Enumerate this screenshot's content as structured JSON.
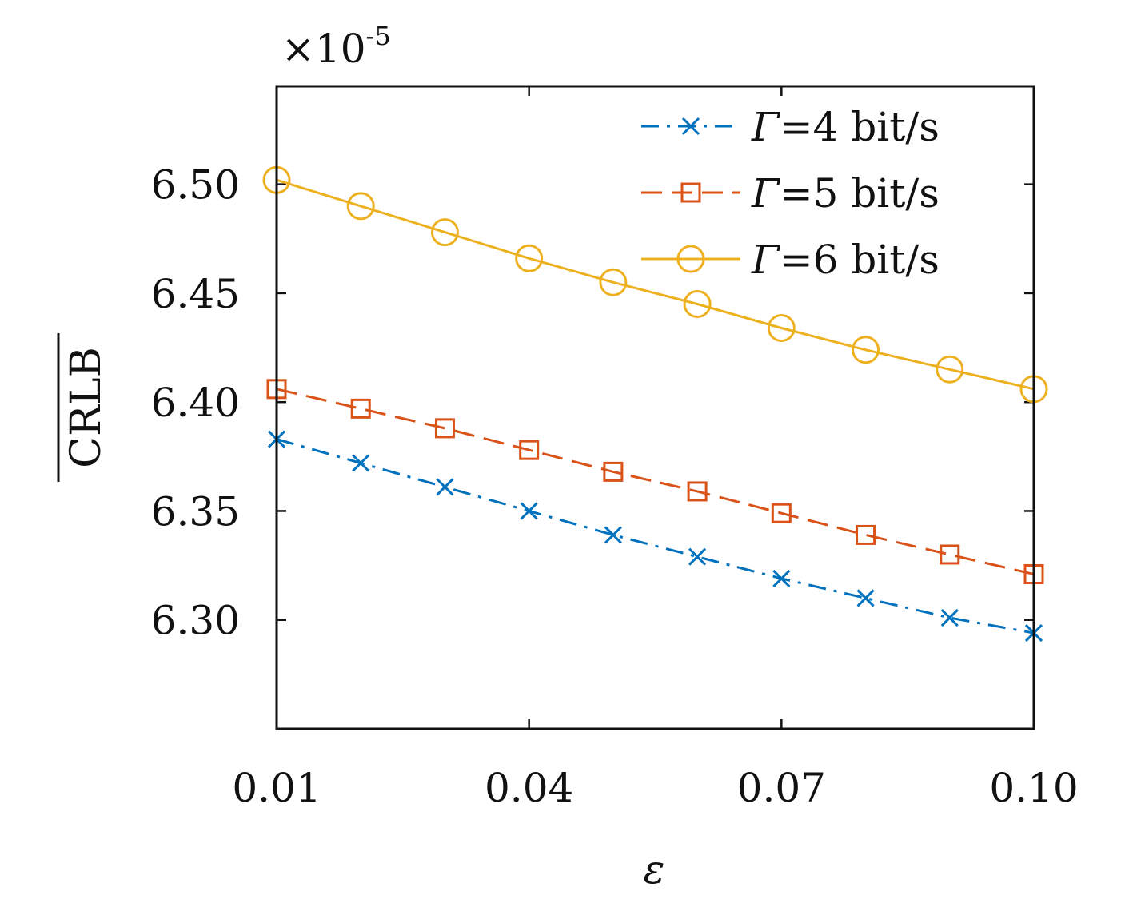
{
  "chart_data": {
    "type": "line",
    "xlabel": "ε",
    "ylabel": "CRLB",
    "ylabel_overline": true,
    "y_multiplier": "×10",
    "y_multiplier_exp": "-5",
    "xlim": [
      0.01,
      0.1
    ],
    "ylim": [
      6.25,
      6.545
    ],
    "x_ticks": [
      0.01,
      0.04,
      0.07,
      0.1
    ],
    "x_tick_labels": [
      "0.01",
      "0.04",
      "0.07",
      "0.10"
    ],
    "y_ticks": [
      6.3,
      6.35,
      6.4,
      6.45,
      6.5
    ],
    "y_tick_labels": [
      "6.30",
      "6.35",
      "6.40",
      "6.45",
      "6.50"
    ],
    "grid": false,
    "legend_position": "top-right",
    "x": [
      0.01,
      0.02,
      0.03,
      0.04,
      0.05,
      0.06,
      0.07,
      0.08,
      0.09,
      0.1
    ],
    "series": [
      {
        "name": "Γ=4 bit/s",
        "name_symbol": "Γ",
        "name_rest": "=4 bit/s",
        "color": "#0072BD",
        "marker": "x",
        "line_style": "dash-dot",
        "values": [
          6.383,
          6.372,
          6.361,
          6.35,
          6.339,
          6.329,
          6.319,
          6.31,
          6.301,
          6.294
        ]
      },
      {
        "name": "Γ=5 bit/s",
        "name_symbol": "Γ",
        "name_rest": "=5 bit/s",
        "color": "#D95319",
        "marker": "square",
        "line_style": "dashed",
        "values": [
          6.406,
          6.397,
          6.388,
          6.378,
          6.368,
          6.359,
          6.349,
          6.339,
          6.33,
          6.321
        ]
      },
      {
        "name": "Γ=6 bit/s",
        "name_symbol": "Γ",
        "name_rest": "=6 bit/s",
        "color": "#EDB120",
        "marker": "circle",
        "line_style": "solid",
        "values": [
          6.502,
          6.49,
          6.478,
          6.466,
          6.455,
          6.445,
          6.434,
          6.424,
          6.415,
          6.406
        ]
      }
    ]
  }
}
